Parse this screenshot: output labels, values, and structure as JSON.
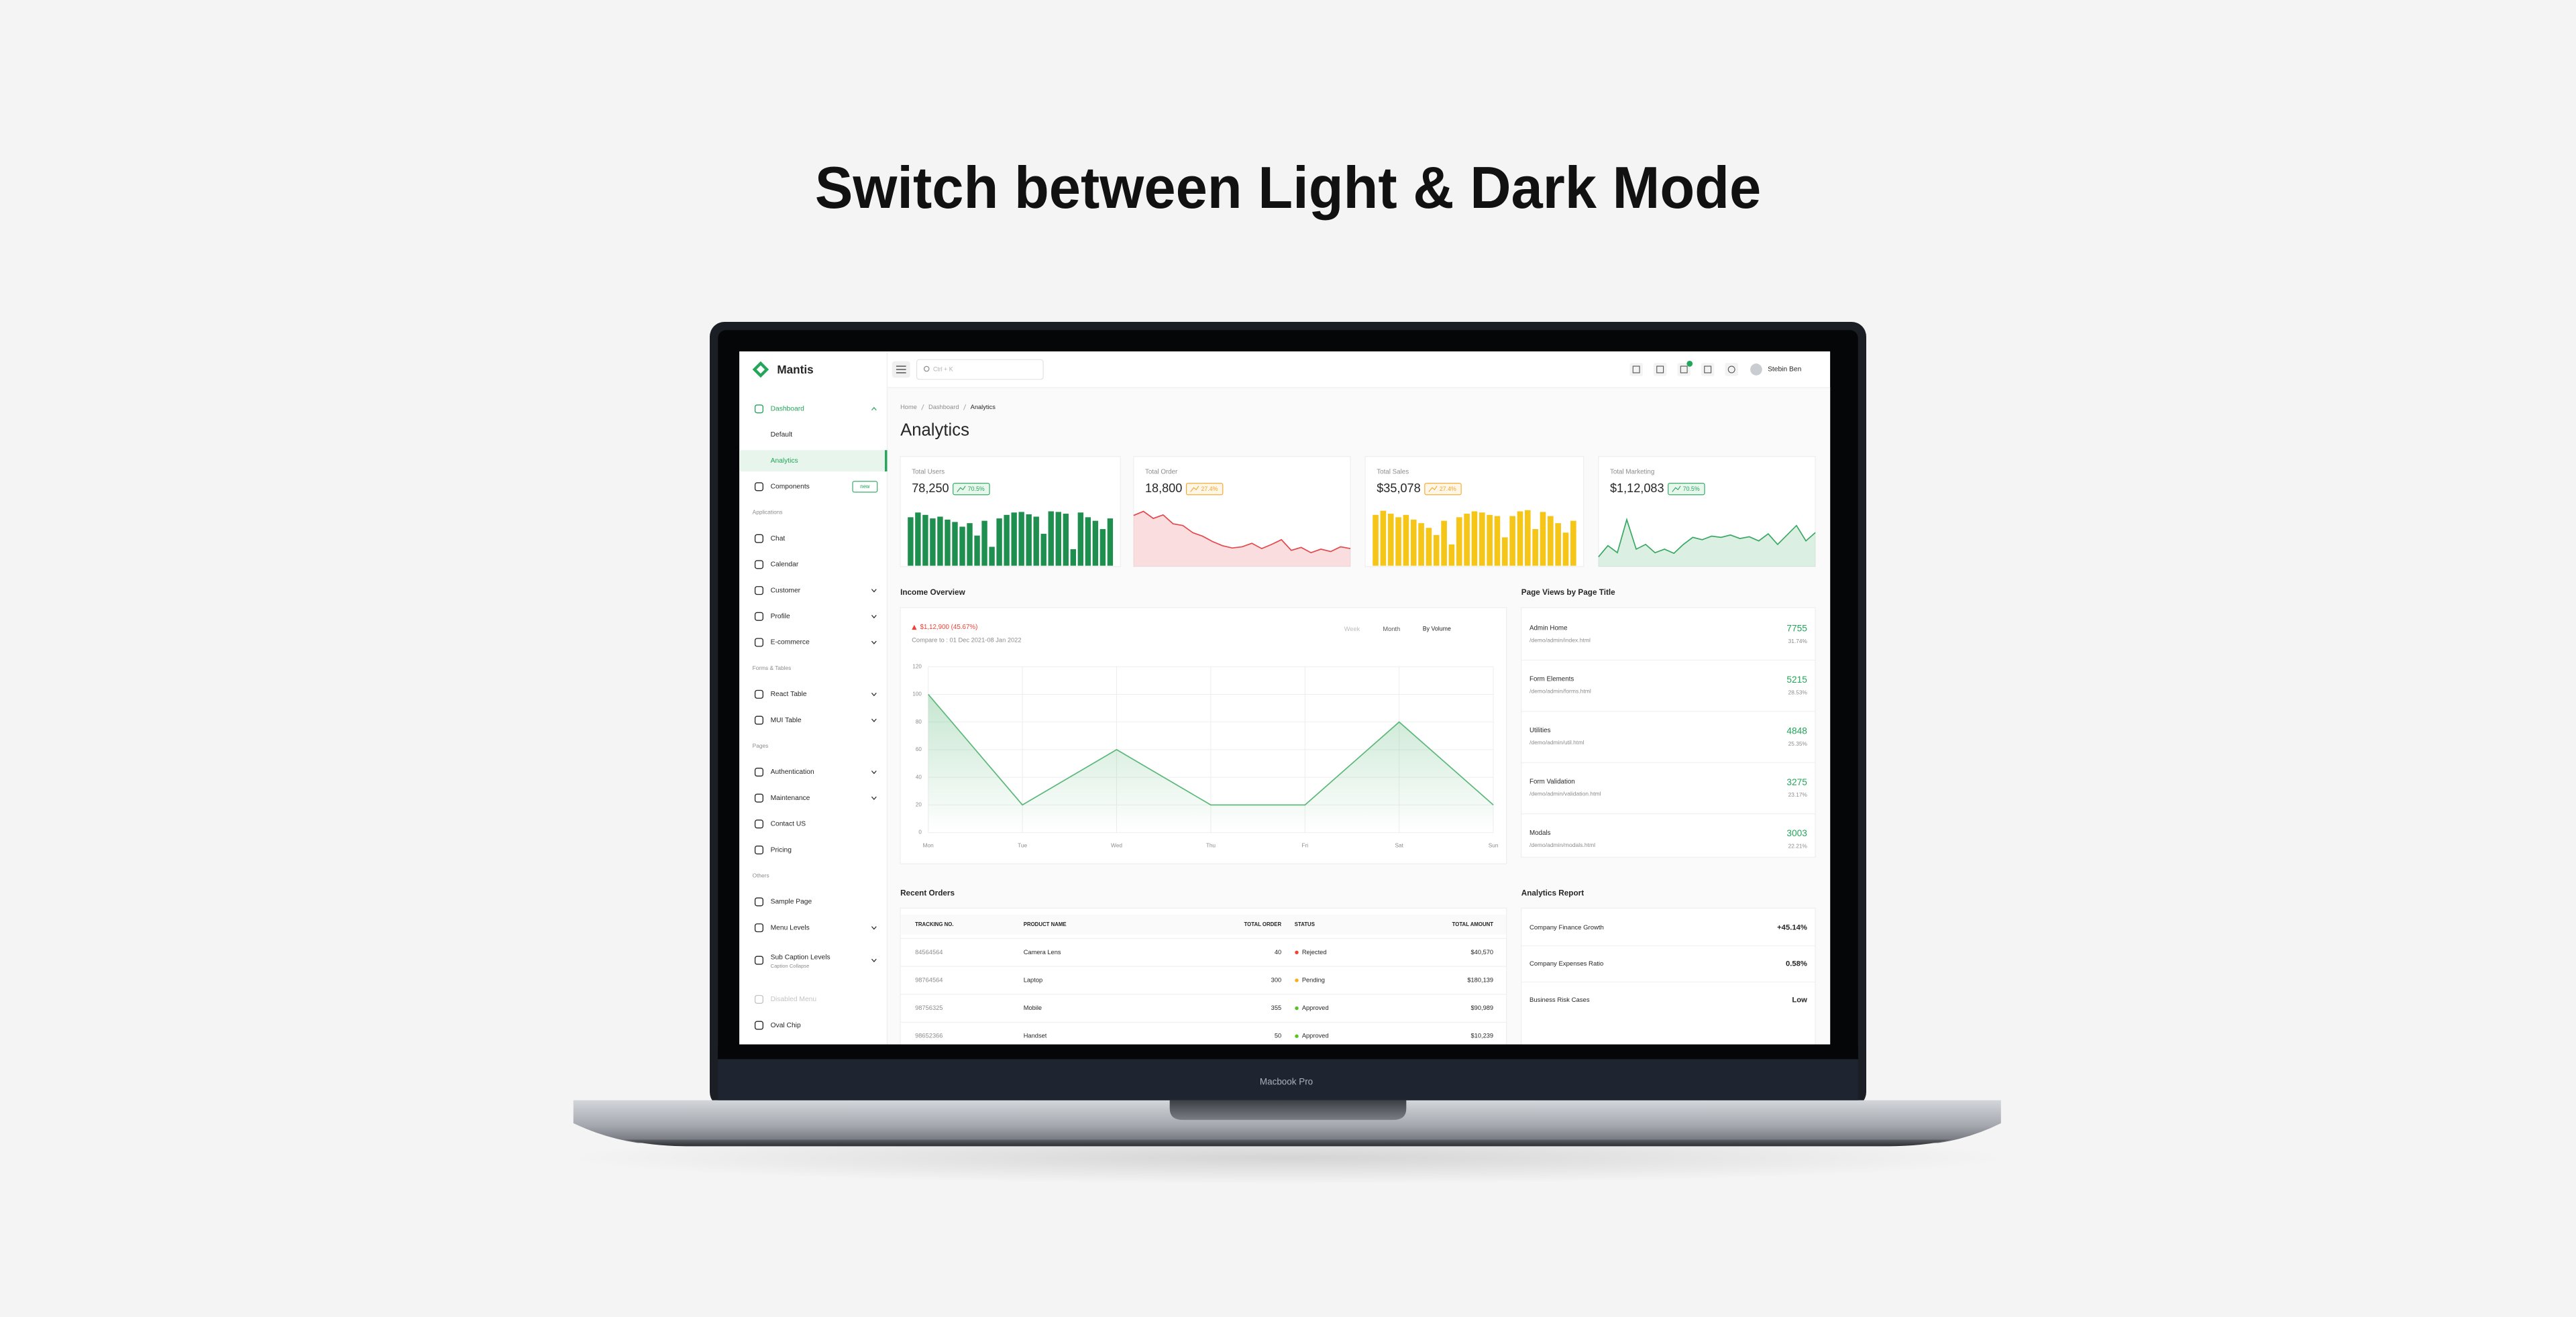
{
  "headline": "Switch between Light & Dark Mode",
  "device_label": "Macbook Pro",
  "app": {
    "brand": "Mantis",
    "search_placeholder": "Ctrl + K",
    "user": "Stebin Ben"
  },
  "sidebar": {
    "menu": [
      {
        "label": "Dashboard",
        "active": true,
        "expand": "up"
      },
      {
        "label": "Default",
        "sub": true
      },
      {
        "label": "Analytics",
        "sub": true,
        "selected": true
      },
      {
        "label": "Components",
        "chip": "new"
      },
      {
        "caption": "Applications"
      },
      {
        "label": "Chat"
      },
      {
        "label": "Calendar"
      },
      {
        "label": "Customer",
        "expand": "down"
      },
      {
        "label": "Profile",
        "expand": "down"
      },
      {
        "label": "E-commerce",
        "expand": "down"
      },
      {
        "caption": "Forms & Tables"
      },
      {
        "label": "React Table",
        "expand": "down"
      },
      {
        "label": "MUI Table",
        "expand": "down"
      },
      {
        "caption": "Pages"
      },
      {
        "label": "Authentication",
        "expand": "down"
      },
      {
        "label": "Maintenance",
        "expand": "down"
      },
      {
        "label": "Contact US"
      },
      {
        "label": "Pricing"
      },
      {
        "caption": "Others"
      },
      {
        "label": "Sample Page"
      },
      {
        "label": "Menu Levels",
        "expand": "down"
      },
      {
        "label": "Sub Caption Levels",
        "subtitle": "Caption Collapse",
        "expand": "down"
      },
      {
        "label": "Disabled Menu",
        "disabled": true
      },
      {
        "label": "Oval Chip"
      }
    ]
  },
  "breadcrumb": [
    "Home",
    "Dashboard",
    "Analytics"
  ],
  "page_title": "Analytics",
  "stat_cards": [
    {
      "label": "Total Users",
      "value": "78,250",
      "change": "70.5%",
      "badge_color": "#23a55a",
      "chart": "bar",
      "color": "#1e8f4e",
      "ylim": [
        0,
        10
      ],
      "data": [
        8.2,
        9,
        8.6,
        8,
        8.3,
        7.8,
        7.4,
        6.6,
        7.2,
        5.1,
        7.6,
        3.2,
        8,
        8.6,
        9,
        9.1,
        8.7,
        8.3,
        5.4,
        9.2,
        9.1,
        8.8,
        2.8,
        9,
        8.2,
        7.6,
        6.2,
        8
      ]
    },
    {
      "label": "Total Order",
      "value": "18,800",
      "change": "27.4%",
      "badge_color": "#f5a623",
      "chart": "area",
      "color": "#e5484d",
      "ylim": [
        0,
        10
      ],
      "data": [
        8.5,
        9.2,
        8,
        8.6,
        7.1,
        6.8,
        5.6,
        5,
        4.1,
        3.4,
        3,
        3.2,
        3.8,
        2.9,
        3.6,
        4.4,
        2.6,
        3.1,
        2.2,
        2.8,
        2.4,
        3.2,
        2.9
      ]
    },
    {
      "label": "Total Sales",
      "value": "$35,078",
      "change": "27.4%",
      "badge_color": "#f5a623",
      "chart": "bar",
      "color": "#f5c518",
      "ylim": [
        0,
        10
      ],
      "data": [
        8.6,
        9.3,
        8.8,
        8.2,
        8.6,
        7.8,
        7.2,
        6.4,
        5.2,
        7.6,
        3.6,
        8.2,
        8.8,
        9.2,
        9,
        8.6,
        8.4,
        4.8,
        8.4,
        9.2,
        9.4,
        6.2,
        9.1,
        8.4,
        7.2,
        5.6,
        7.6
      ]
    },
    {
      "label": "Total Marketing",
      "value": "$1,12,083",
      "change": "70.5%",
      "badge_color": "#23a55a",
      "chart": "area",
      "color": "#3aa864",
      "ylim": [
        0,
        10
      ],
      "data": [
        1.5,
        3.4,
        2.2,
        7.8,
        2.8,
        3.6,
        2.2,
        2.8,
        2.1,
        3.6,
        4.8,
        4.4,
        5,
        4.8,
        5.2,
        4.6,
        4.9,
        4.2,
        5.4,
        3.6,
        5.2,
        6.8,
        4.2,
        5.6
      ]
    }
  ],
  "income_overview": {
    "title": "Income Overview",
    "amount": "$1,12,900 (45.67%)",
    "compare": "Compare to : 01 Dec 2021-08 Jan 2022",
    "buttons": [
      "Week",
      "Month"
    ],
    "select": "By Volume",
    "chart": {
      "type": "area",
      "categories": [
        "Mon",
        "Tue",
        "Wed",
        "Thu",
        "Fri",
        "Sat",
        "Sun"
      ],
      "values": [
        100,
        20,
        60,
        20,
        20,
        80,
        20
      ],
      "color": "#5cb87a",
      "ylim": [
        0,
        120
      ],
      "yticks": [
        0,
        20,
        40,
        60,
        80,
        100,
        120
      ],
      "grid": true
    }
  },
  "page_views": {
    "title": "Page Views by Page Title",
    "rows": [
      {
        "title": "Admin Home",
        "url": "/demo/admin/index.html",
        "views": "7755",
        "percent": "31.74%"
      },
      {
        "title": "Form Elements",
        "url": "/demo/admin/forms.html",
        "views": "5215",
        "percent": "28.53%"
      },
      {
        "title": "Utilities",
        "url": "/demo/admin/util.html",
        "views": "4848",
        "percent": "25.35%"
      },
      {
        "title": "Form Validation",
        "url": "/demo/admin/validation.html",
        "views": "3275",
        "percent": "23.17%"
      },
      {
        "title": "Modals",
        "url": "/demo/admin/modals.html",
        "views": "3003",
        "percent": "22.21%"
      }
    ]
  },
  "recent_orders": {
    "title": "Recent Orders",
    "columns": [
      "TRACKING NO.",
      "PRODUCT NAME",
      "TOTAL ORDER",
      "STATUS",
      "TOTAL AMOUNT"
    ],
    "rows": [
      [
        "84564564",
        "Camera Lens",
        "40",
        "Rejected",
        "$40,570"
      ],
      [
        "98764564",
        "Laptop",
        "300",
        "Pending",
        "$180,139"
      ],
      [
        "98756325",
        "Mobile",
        "355",
        "Approved",
        "$90,989"
      ],
      [
        "98652366",
        "Handset",
        "50",
        "Approved",
        "$10,239"
      ]
    ],
    "status_colors": {
      "Rejected": "#f04134",
      "Pending": "#faad14",
      "Approved": "#52c41a"
    }
  },
  "analytics_report": {
    "title": "Analytics Report",
    "rows": [
      {
        "label": "Company Finance Growth",
        "value": "+45.14%"
      },
      {
        "label": "Company Expenses Ratio",
        "value": "0.58%"
      },
      {
        "label": "Business Risk Cases",
        "value": "Low"
      }
    ]
  }
}
